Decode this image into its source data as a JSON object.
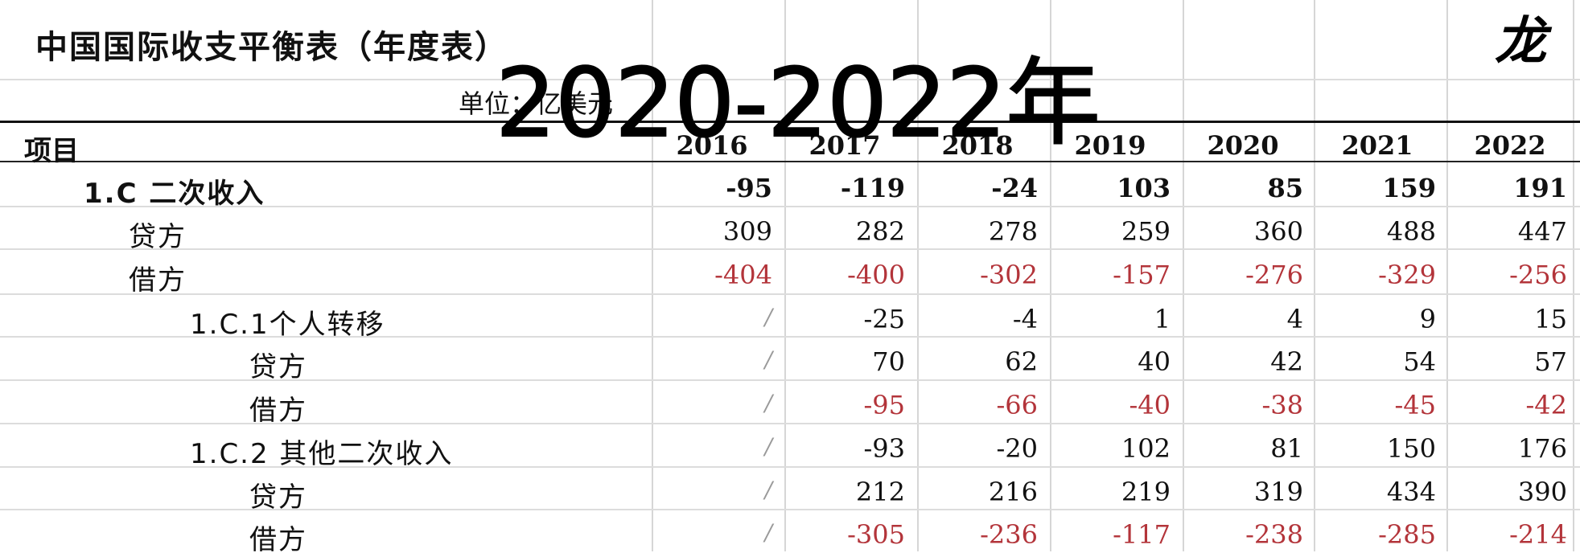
{
  "title": "中国国际收支平衡表（年度表）",
  "unit": "单位：亿美元",
  "overlay_text": "2020-2022年",
  "brand_mark": "龙",
  "header": {
    "item": "项目",
    "years": [
      "2016",
      "2017",
      "2018",
      "2019",
      "2020",
      "2021",
      "2022"
    ]
  },
  "rows": [
    {
      "label": "1.C 二次收入",
      "values": [
        "-95",
        "-119",
        "-24",
        "103",
        "85",
        "159",
        "191"
      ]
    },
    {
      "label": "贷方",
      "values": [
        "309",
        "282",
        "278",
        "259",
        "360",
        "488",
        "447"
      ]
    },
    {
      "label": "借方",
      "values": [
        "-404",
        "-400",
        "-302",
        "-157",
        "-276",
        "-329",
        "-256"
      ]
    },
    {
      "label": "1.C.1个人转移",
      "values": [
        "/",
        "-25",
        "-4",
        "1",
        "4",
        "9",
        "15"
      ]
    },
    {
      "label": "贷方",
      "values": [
        "/",
        "70",
        "62",
        "40",
        "42",
        "54",
        "57"
      ]
    },
    {
      "label": "借方",
      "values": [
        "/",
        "-95",
        "-66",
        "-40",
        "-38",
        "-45",
        "-42"
      ]
    },
    {
      "label": "1.C.2 其他二次收入",
      "values": [
        "/",
        "-93",
        "-20",
        "102",
        "81",
        "150",
        "176"
      ]
    },
    {
      "label": "贷方",
      "values": [
        "/",
        "212",
        "216",
        "219",
        "319",
        "434",
        "390"
      ]
    },
    {
      "label": "借方",
      "values": [
        "/",
        "-305",
        "-236",
        "-117",
        "-238",
        "-285",
        "-214"
      ]
    }
  ],
  "colors": {
    "negative": "#b3343a",
    "slash": "#9a9a9a",
    "grid": "#d6d6d6"
  }
}
